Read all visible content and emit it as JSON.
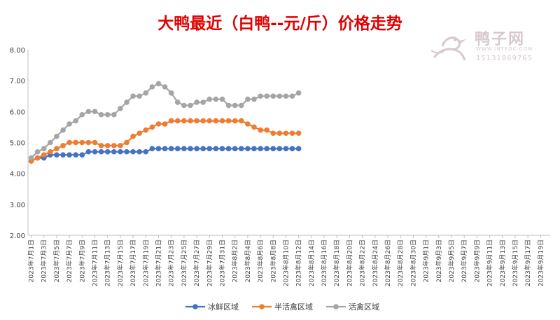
{
  "title": "大鸭最近（白鸭--元/斤）价格走势",
  "watermark": {
    "name": "鸭子网",
    "url": "WWW.INTEDC.COM",
    "phone": "15131869765"
  },
  "chart_data": {
    "type": "line",
    "title": "大鸭最近（白鸭--元/斤）价格走势",
    "xlabel": "",
    "ylabel": "",
    "ylim": [
      2.0,
      8.0
    ],
    "yticks": [
      "2.00",
      "3.00",
      "4.00",
      "5.00",
      "6.00",
      "7.00",
      "8.00"
    ],
    "grid": false,
    "legend": "bottom",
    "x_start": "2023年7月1日",
    "x_end": "2023年9月20日",
    "categories": [
      "2023年7月1日",
      "2023年7月2日",
      "2023年7月3日",
      "2023年7月4日",
      "2023年7月5日",
      "2023年7月6日",
      "2023年7月7日",
      "2023年7月8日",
      "2023年7月9日",
      "2023年7月10日",
      "2023年7月11日",
      "2023年7月12日",
      "2023年7月13日",
      "2023年7月14日",
      "2023年7月15日",
      "2023年7月16日",
      "2023年7月17日",
      "2023年7月18日",
      "2023年7月19日",
      "2023年7月20日",
      "2023年7月21日",
      "2023年7月22日",
      "2023年7月23日",
      "2023年7月24日",
      "2023年7月25日",
      "2023年7月26日",
      "2023年7月27日",
      "2023年7月28日",
      "2023年7月29日",
      "2023年7月30日",
      "2023年7月31日",
      "2023年8月1日",
      "2023年8月2日",
      "2023年8月3日",
      "2023年8月4日",
      "2023年8月5日",
      "2023年8月6日",
      "2023年8月7日",
      "2023年8月8日",
      "2023年8月9日",
      "2023年8月10日",
      "2023年8月11日",
      "2023年8月12日"
    ],
    "tick_labels": [
      "2023年7月1日",
      "2023年7月3日",
      "2023年7月5日",
      "2023年7月7日",
      "2023年7月9日",
      "2023年7月11日",
      "2023年7月13日",
      "2023年7月15日",
      "2023年7月17日",
      "2023年7月19日",
      "2023年7月21日",
      "2023年7月23日",
      "2023年7月25日",
      "2023年7月27日",
      "2023年7月29日",
      "2023年7月31日",
      "2023年8月2日",
      "2023年8月4日",
      "2023年8月6日",
      "2023年8月8日",
      "2023年8月10日",
      "2023年8月12日",
      "2023年8月14日",
      "2023年8月16日",
      "2023年8月18日",
      "2023年8月20日",
      "2023年8月22日",
      "2023年8月24日",
      "2023年8月26日",
      "2023年8月28日",
      "2023年8月30日",
      "2023年9月1日",
      "2023年9月3日",
      "2023年9月5日",
      "2023年9月7日",
      "2023年9月9日",
      "2023年9月11日",
      "2023年9月13日",
      "2023年9月15日",
      "2023年9月17日",
      "2023年9月19日"
    ],
    "series": [
      {
        "name": "冰鲜区域",
        "color": "#4472c4",
        "values": [
          4.4,
          4.5,
          4.5,
          4.6,
          4.6,
          4.6,
          4.6,
          4.6,
          4.6,
          4.7,
          4.7,
          4.7,
          4.7,
          4.7,
          4.7,
          4.7,
          4.7,
          4.7,
          4.7,
          4.8,
          4.8,
          4.8,
          4.8,
          4.8,
          4.8,
          4.8,
          4.8,
          4.8,
          4.8,
          4.8,
          4.8,
          4.8,
          4.8,
          4.8,
          4.8,
          4.8,
          4.8,
          4.8,
          4.8,
          4.8,
          4.8,
          4.8,
          4.8
        ]
      },
      {
        "name": "半活禽区域",
        "color": "#ed7d31",
        "values": [
          4.4,
          4.5,
          4.6,
          4.7,
          4.8,
          4.9,
          5.0,
          5.0,
          5.0,
          5.0,
          5.0,
          4.9,
          4.9,
          4.9,
          4.9,
          5.0,
          5.2,
          5.3,
          5.4,
          5.5,
          5.6,
          5.6,
          5.7,
          5.7,
          5.7,
          5.7,
          5.7,
          5.7,
          5.7,
          5.7,
          5.7,
          5.7,
          5.7,
          5.7,
          5.6,
          5.5,
          5.4,
          5.4,
          5.3,
          5.3,
          5.3,
          5.3,
          5.3
        ]
      },
      {
        "name": "活禽区域",
        "color": "#a5a5a5",
        "values": [
          4.5,
          4.7,
          4.8,
          5.0,
          5.2,
          5.4,
          5.6,
          5.7,
          5.9,
          6.0,
          6.0,
          5.9,
          5.9,
          5.9,
          6.1,
          6.3,
          6.5,
          6.5,
          6.6,
          6.8,
          6.9,
          6.8,
          6.6,
          6.3,
          6.2,
          6.2,
          6.3,
          6.3,
          6.4,
          6.4,
          6.4,
          6.2,
          6.2,
          6.2,
          6.4,
          6.4,
          6.5,
          6.5,
          6.5,
          6.5,
          6.5,
          6.5,
          6.6
        ]
      }
    ]
  }
}
